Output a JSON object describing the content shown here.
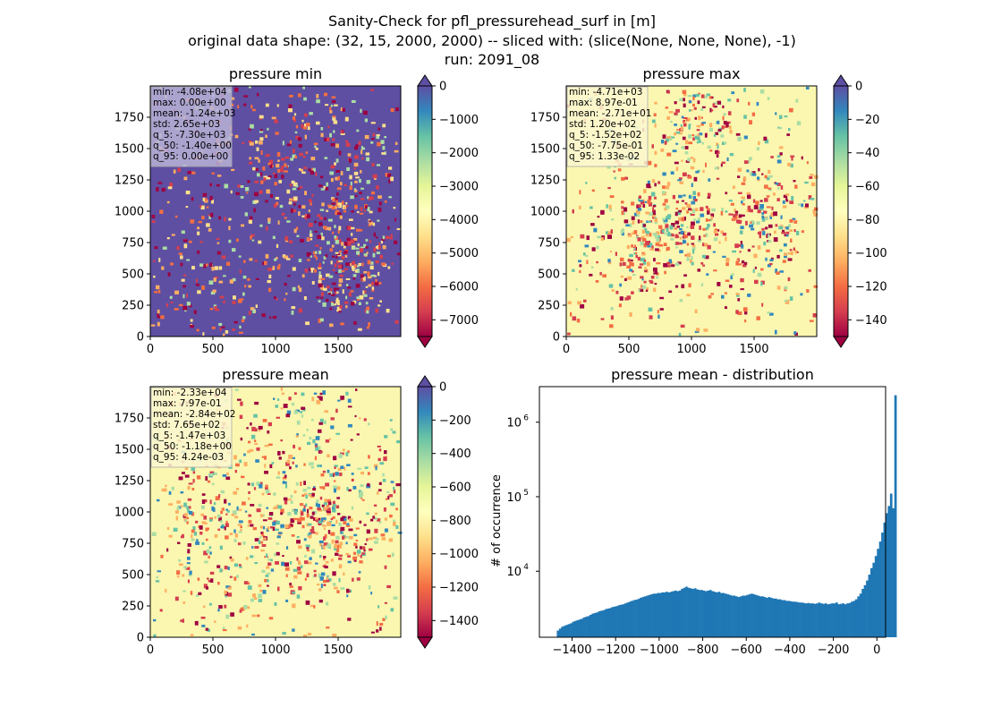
{
  "figure": {
    "title_lines": [
      "Sanity-Check for pfl_pressurehead_surf in [m]",
      "original data shape: (32, 15, 2000, 2000) -- sliced with: (slice(None, None, None), -1)",
      "run: 2091_08"
    ]
  },
  "chart_data": [
    {
      "type": "heatmap",
      "title": "pressure min",
      "colormap": "Spectral",
      "xlim": [
        0,
        2000
      ],
      "ylim": [
        0,
        2000
      ],
      "x_ticks": [
        "0",
        "500",
        "1000",
        "1500"
      ],
      "y_ticks": [
        "0",
        "250",
        "500",
        "750",
        "1000",
        "1250",
        "1500",
        "1750"
      ],
      "colorbar": {
        "range": [
          -7500,
          0
        ],
        "ticks": [
          "0",
          "−1000",
          "−2000",
          "−3000",
          "−4000",
          "−5000",
          "−6000",
          "−7000"
        ],
        "tick_values": [
          0,
          -1000,
          -2000,
          -3000,
          -4000,
          -5000,
          -6000,
          -7000
        ]
      },
      "stats": [
        "min: -4.08e+04",
        "max: 0.00e+00",
        "mean: -1.24e+03",
        "std: 2.65e+03",
        "q_5: -7.30e+03",
        "q_50: -1.40e+00",
        "q_95: 0.00e+00"
      ],
      "dominant_color": "#5e4fa2"
    },
    {
      "type": "heatmap",
      "title": "pressure max",
      "colormap": "Spectral",
      "xlim": [
        0,
        2000
      ],
      "ylim": [
        0,
        2000
      ],
      "x_ticks": [
        "0",
        "500",
        "1000",
        "1500"
      ],
      "y_ticks": [
        "0",
        "250",
        "500",
        "750",
        "1000",
        "1250",
        "1500",
        "1750"
      ],
      "colorbar": {
        "range": [
          -150,
          0
        ],
        "ticks": [
          "0",
          "−20",
          "−40",
          "−60",
          "−80",
          "−100",
          "−120",
          "−140"
        ],
        "tick_values": [
          0,
          -20,
          -40,
          -60,
          -80,
          -100,
          -120,
          -140
        ]
      },
      "stats": [
        "min: -4.71e+03",
        "max: 8.97e-01",
        "mean: -2.71e+01",
        "std: 1.20e+02",
        "q_5: -1.52e+02",
        "q_50: -7.75e-01",
        "q_95: 1.33e-02"
      ],
      "dominant_color": "#fbf7b0"
    },
    {
      "type": "heatmap",
      "title": "pressure mean",
      "colormap": "Spectral",
      "xlim": [
        0,
        2000
      ],
      "ylim": [
        0,
        2000
      ],
      "x_ticks": [
        "0",
        "500",
        "1000",
        "1500"
      ],
      "y_ticks": [
        "0",
        "250",
        "500",
        "750",
        "1000",
        "1250",
        "1500",
        "1750"
      ],
      "colorbar": {
        "range": [
          -1500,
          0
        ],
        "ticks": [
          "0",
          "−200",
          "−400",
          "−600",
          "−800",
          "−1000",
          "−1200",
          "−1400"
        ],
        "tick_values": [
          0,
          -200,
          -400,
          -600,
          -800,
          -1000,
          -1200,
          -1400
        ]
      },
      "stats": [
        "min: -2.33e+04",
        "max: 7.97e-01",
        "mean: -2.84e+02",
        "std: 7.65e+02",
        "q_5: -1.47e+03",
        "q_50: -1.18e+00",
        "q_95: 4.24e-03"
      ],
      "dominant_color": "#fbf7b0"
    },
    {
      "type": "bar",
      "title": "pressure mean - distribution",
      "ylabel": "# of occurrence",
      "yscale": "log",
      "xlim": [
        -1550,
        40
      ],
      "ylim": [
        1300,
        3000000
      ],
      "x_ticks": [
        "−1400",
        "−1200",
        "−1000",
        "−800",
        "−600",
        "−400",
        "−200",
        "0"
      ],
      "x_tick_values": [
        -1400,
        -1200,
        -1000,
        -800,
        -600,
        -400,
        -200,
        0
      ],
      "y_ticks": [
        "10",
        "10",
        "10"
      ],
      "y_tick_exponents": [
        "4",
        "5",
        "6"
      ],
      "y_tick_values": [
        10000,
        100000,
        1000000
      ],
      "bar_color": "#1f77b4",
      "bin_range": [
        -1470,
        0
      ],
      "bin_width": 10,
      "values": [
        1600,
        1700,
        1800,
        1850,
        1900,
        1950,
        2000,
        2100,
        2150,
        2200,
        2250,
        2300,
        2400,
        2450,
        2500,
        2600,
        2700,
        2750,
        2800,
        2900,
        2950,
        3000,
        3100,
        3150,
        3200,
        3300,
        3350,
        3400,
        3500,
        3550,
        3600,
        3700,
        3800,
        3900,
        4000,
        4100,
        4150,
        4250,
        4400,
        4500,
        4600,
        4700,
        4800,
        4900,
        5000,
        5000,
        5100,
        5100,
        5200,
        5200,
        5300,
        5200,
        5300,
        5400,
        5500,
        5400,
        5500,
        5800,
        6000,
        6200,
        6000,
        5900,
        5800,
        5900,
        5700,
        5600,
        5600,
        5500,
        5400,
        5500,
        5600,
        5400,
        5300,
        5200,
        5300,
        5100,
        5100,
        5000,
        4900,
        4800,
        4700,
        4700,
        4600,
        4500,
        4600,
        4700,
        4700,
        4800,
        4900,
        5000,
        4900,
        4800,
        4700,
        4600,
        4600,
        4500,
        4400,
        4500,
        4400,
        4300,
        4300,
        4200,
        4200,
        4100,
        4100,
        4000,
        4000,
        3950,
        3900,
        3900,
        3850,
        3800,
        3800,
        3750,
        3700,
        3750,
        3700,
        3700,
        3650,
        3700,
        3800,
        3700,
        3650,
        3700,
        3600,
        3650,
        3700,
        3700,
        3800,
        3600,
        3650,
        3700,
        3600,
        3700,
        3750,
        3900,
        4000,
        4200,
        4600,
        5000,
        5800,
        6500,
        7500,
        9000,
        11000,
        13000,
        16000,
        20000,
        25000,
        33000,
        45000,
        60000,
        75000,
        110000,
        70000,
        2300000
      ]
    }
  ]
}
